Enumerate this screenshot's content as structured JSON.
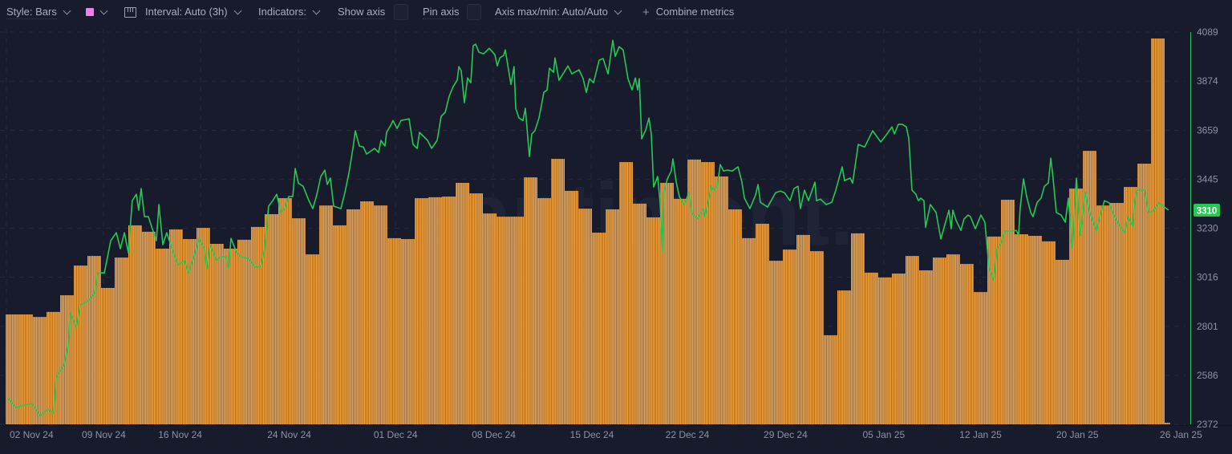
{
  "toolbar": {
    "style_label": "Style: Bars",
    "color_swatch": "#f47ee8",
    "interval_label": "Interval: Auto (3h)",
    "indicators_label": "Indicators:",
    "show_axis_label": "Show axis",
    "pin_axis_label": "Pin axis",
    "axis_maxmin_label": "Axis max/min: Auto/Auto",
    "combine_plus": "+",
    "combine_label": "Combine metrics"
  },
  "watermark": "santiment.",
  "colors": {
    "background": "#181b2b",
    "bars": "#f5a544",
    "line": "#26c953",
    "axis_line": "#26c953",
    "grid": "#2a2e42"
  },
  "chart_data": {
    "type": "bar+line",
    "x_unit": "days since 02 Nov 24",
    "y_axis": {
      "side": "right",
      "ticks": [
        4089,
        3874,
        3659,
        3445,
        3230,
        3016,
        2801,
        2586,
        2372
      ],
      "ylim": [
        2372,
        4089
      ]
    },
    "current_value_label": "3310",
    "x_ticks": [
      {
        "t": 1.9,
        "label": "02 Nov 24"
      },
      {
        "t": 7.2,
        "label": "09 Nov 24"
      },
      {
        "t": 12.8,
        "label": "16 Nov 24"
      },
      {
        "t": 20.8,
        "label": "24 Nov 24"
      },
      {
        "t": 28.6,
        "label": "01 Dec 24"
      },
      {
        "t": 35.8,
        "label": "08 Dec 24"
      },
      {
        "t": 43.0,
        "label": "15 Dec 24"
      },
      {
        "t": 50.0,
        "label": "22 Dec 24"
      },
      {
        "t": 57.2,
        "label": "29 Dec 24"
      },
      {
        "t": 64.4,
        "label": "05 Jan 25"
      },
      {
        "t": 71.5,
        "label": "12 Jan 25"
      },
      {
        "t": 78.6,
        "label": "20 Jan 25"
      },
      {
        "t": 86.2,
        "label": "26 Jan 25"
      }
    ],
    "grid_t": [
      0.06,
      7.18,
      14.3,
      21.47,
      28.6,
      35.76,
      42.94,
      50.0,
      57.24,
      64.41,
      71.47,
      78.65
    ],
    "bars": {
      "name": "Bar metric (daily, scaled to visible axis)",
      "values": [
        2853,
        2853,
        2842,
        2864,
        2937,
        3067,
        3109,
        2969,
        3102,
        3243,
        3215,
        3141,
        3225,
        3183,
        3232,
        3162,
        3141,
        3180,
        3236,
        3292,
        3362,
        3274,
        3116,
        3330,
        3243,
        3313,
        3348,
        3330,
        3187,
        3183,
        3362,
        3366,
        3369,
        3429,
        3383,
        3295,
        3281,
        3281,
        3453,
        3362,
        3534,
        3394,
        3316,
        3211,
        3313,
        3520,
        3338,
        3278,
        3429,
        3359,
        3531,
        3520,
        3457,
        3313,
        3187,
        3250,
        3088,
        3137,
        3201,
        3130,
        2762,
        2958,
        3208,
        3036,
        3015,
        3032,
        3109,
        3046,
        3102,
        3116,
        3074,
        2951,
        3194,
        3355,
        3204,
        3197,
        3173,
        3092,
        3404,
        3569,
        3330,
        3341,
        3411,
        3513,
        4061,
        2379
      ]
    },
    "line": {
      "name": "Price",
      "points": [
        [
          0.18,
          2488
        ],
        [
          0.76,
          2445
        ],
        [
          1.35,
          2456
        ],
        [
          1.94,
          2463
        ],
        [
          2.53,
          2410
        ],
        [
          3.12,
          2438
        ],
        [
          3.53,
          2421
        ],
        [
          3.71,
          2579
        ],
        [
          4.29,
          2631
        ],
        [
          4.59,
          2719
        ],
        [
          4.76,
          2860
        ],
        [
          5.18,
          2797
        ],
        [
          5.47,
          2895
        ],
        [
          6.06,
          2912
        ],
        [
          6.53,
          2947
        ],
        [
          6.76,
          3035
        ],
        [
          7.24,
          3035
        ],
        [
          7.71,
          3176
        ],
        [
          8.12,
          3211
        ],
        [
          8.41,
          3141
        ],
        [
          8.71,
          3211
        ],
        [
          9.0,
          3123
        ],
        [
          9.29,
          3351
        ],
        [
          9.59,
          3379
        ],
        [
          9.76,
          3309
        ],
        [
          9.94,
          3404
        ],
        [
          10.18,
          3281
        ],
        [
          10.47,
          3281
        ],
        [
          10.76,
          3228
        ],
        [
          11.06,
          3176
        ],
        [
          11.24,
          3334
        ],
        [
          11.53,
          3158
        ],
        [
          11.82,
          3211
        ],
        [
          12.24,
          3134
        ],
        [
          12.65,
          3070
        ],
        [
          13.12,
          3088
        ],
        [
          13.41,
          3035
        ],
        [
          13.82,
          3106
        ],
        [
          14.18,
          3186
        ],
        [
          14.59,
          3141
        ],
        [
          14.76,
          3053
        ],
        [
          15.0,
          3158
        ],
        [
          15.47,
          3088
        ],
        [
          15.76,
          3106
        ],
        [
          16.18,
          3106
        ],
        [
          16.35,
          3053
        ],
        [
          16.53,
          3186
        ],
        [
          16.94,
          3123
        ],
        [
          17.24,
          3106
        ],
        [
          17.82,
          3098
        ],
        [
          18.29,
          3060
        ],
        [
          18.71,
          3063
        ],
        [
          19.0,
          3141
        ],
        [
          19.29,
          3327
        ],
        [
          19.59,
          3351
        ],
        [
          19.88,
          3379
        ],
        [
          20.18,
          3299
        ],
        [
          20.47,
          3316
        ],
        [
          20.76,
          3369
        ],
        [
          21.06,
          3369
        ],
        [
          21.24,
          3492
        ],
        [
          21.47,
          3428
        ],
        [
          21.82,
          3414
        ],
        [
          22.24,
          3351
        ],
        [
          22.53,
          3316
        ],
        [
          22.82,
          3376
        ],
        [
          23.12,
          3457
        ],
        [
          23.41,
          3485
        ],
        [
          23.59,
          3422
        ],
        [
          23.82,
          3450
        ],
        [
          24.06,
          3327
        ],
        [
          24.59,
          3316
        ],
        [
          24.88,
          3386
        ],
        [
          25.18,
          3474
        ],
        [
          25.47,
          3580
        ],
        [
          25.65,
          3657
        ],
        [
          25.94,
          3590
        ],
        [
          26.24,
          3586
        ],
        [
          26.47,
          3555
        ],
        [
          27.06,
          3580
        ],
        [
          27.35,
          3562
        ],
        [
          27.53,
          3615
        ],
        [
          27.82,
          3590
        ],
        [
          27.94,
          3650
        ],
        [
          28.24,
          3681
        ],
        [
          28.41,
          3702
        ],
        [
          28.71,
          3667
        ],
        [
          29.0,
          3702
        ],
        [
          29.59,
          3709
        ],
        [
          29.88,
          3597
        ],
        [
          30.18,
          3580
        ],
        [
          30.35,
          3650
        ],
        [
          30.94,
          3615
        ],
        [
          31.24,
          3580
        ],
        [
          31.65,
          3615
        ],
        [
          31.94,
          3720
        ],
        [
          32.24,
          3738
        ],
        [
          32.53,
          3808
        ],
        [
          32.82,
          3850
        ],
        [
          33.12,
          3878
        ],
        [
          33.24,
          3938
        ],
        [
          33.41,
          3920
        ],
        [
          33.65,
          3780
        ],
        [
          33.88,
          3888
        ],
        [
          34.12,
          3867
        ],
        [
          34.29,
          4029
        ],
        [
          34.47,
          4036
        ],
        [
          34.71,
          4001
        ],
        [
          35.06,
          3994
        ],
        [
          35.47,
          4018
        ],
        [
          35.88,
          3990
        ],
        [
          36.06,
          3941
        ],
        [
          36.24,
          3976
        ],
        [
          36.53,
          3987
        ],
        [
          36.65,
          4011
        ],
        [
          36.82,
          3948
        ],
        [
          37.06,
          3860
        ],
        [
          37.29,
          3938
        ],
        [
          37.41,
          3755
        ],
        [
          37.65,
          3713
        ],
        [
          37.94,
          3702
        ],
        [
          38.12,
          3755
        ],
        [
          38.41,
          3544
        ],
        [
          38.59,
          3643
        ],
        [
          38.82,
          3657
        ],
        [
          39.12,
          3713
        ],
        [
          39.29,
          3766
        ],
        [
          39.47,
          3825
        ],
        [
          39.71,
          3836
        ],
        [
          39.88,
          3931
        ],
        [
          40.18,
          3913
        ],
        [
          40.29,
          3976
        ],
        [
          40.59,
          3878
        ],
        [
          40.88,
          3906
        ],
        [
          41.24,
          3941
        ],
        [
          41.53,
          3906
        ],
        [
          42.06,
          3924
        ],
        [
          42.35,
          3885
        ],
        [
          42.59,
          3825
        ],
        [
          42.82,
          3885
        ],
        [
          43.12,
          3867
        ],
        [
          43.53,
          3966
        ],
        [
          43.82,
          3973
        ],
        [
          44.18,
          3906
        ],
        [
          44.53,
          4053
        ],
        [
          44.71,
          3983
        ],
        [
          45.0,
          4025
        ],
        [
          45.29,
          4011
        ],
        [
          45.65,
          3885
        ],
        [
          45.94,
          3836
        ],
        [
          46.18,
          3888
        ],
        [
          46.35,
          3836
        ],
        [
          46.47,
          3885
        ],
        [
          46.65,
          3622
        ],
        [
          46.94,
          3660
        ],
        [
          47.18,
          3713
        ],
        [
          47.35,
          3643
        ],
        [
          47.53,
          3411
        ],
        [
          47.82,
          3457
        ],
        [
          48.0,
          3341
        ],
        [
          48.18,
          3123
        ],
        [
          48.29,
          3386
        ],
        [
          48.53,
          3446
        ],
        [
          48.82,
          3481
        ],
        [
          48.94,
          3534
        ],
        [
          49.18,
          3432
        ],
        [
          49.41,
          3369
        ],
        [
          49.76,
          3334
        ],
        [
          50.12,
          3386
        ],
        [
          50.35,
          3292
        ],
        [
          50.76,
          3274
        ],
        [
          51.18,
          3316
        ],
        [
          51.29,
          3281
        ],
        [
          51.76,
          3414
        ],
        [
          51.94,
          3397
        ],
        [
          52.18,
          3414
        ],
        [
          52.41,
          3509
        ],
        [
          52.65,
          3481
        ],
        [
          52.94,
          3485
        ],
        [
          53.29,
          3481
        ],
        [
          53.71,
          3499
        ],
        [
          54.0,
          3432
        ],
        [
          54.18,
          3362
        ],
        [
          54.59,
          3316
        ],
        [
          55.0,
          3376
        ],
        [
          55.18,
          3422
        ],
        [
          55.35,
          3344
        ],
        [
          55.88,
          3323
        ],
        [
          56.47,
          3386
        ],
        [
          56.82,
          3393
        ],
        [
          57.12,
          3386
        ],
        [
          57.53,
          3351
        ],
        [
          57.82,
          3404
        ],
        [
          58.12,
          3414
        ],
        [
          58.29,
          3316
        ],
        [
          58.59,
          3397
        ],
        [
          58.88,
          3351
        ],
        [
          59.35,
          3432
        ],
        [
          59.47,
          3351
        ],
        [
          59.76,
          3358
        ],
        [
          60.18,
          3334
        ],
        [
          60.59,
          3344
        ],
        [
          60.88,
          3397
        ],
        [
          61.35,
          3499
        ],
        [
          61.53,
          3439
        ],
        [
          61.94,
          3450
        ],
        [
          62.12,
          3428
        ],
        [
          62.53,
          3597
        ],
        [
          63.0,
          3586
        ],
        [
          63.59,
          3657
        ],
        [
          64.18,
          3608
        ],
        [
          64.59,
          3639
        ],
        [
          65.0,
          3674
        ],
        [
          65.18,
          3643
        ],
        [
          65.47,
          3685
        ],
        [
          65.76,
          3685
        ],
        [
          66.06,
          3674
        ],
        [
          66.24,
          3622
        ],
        [
          66.47,
          3397
        ],
        [
          66.76,
          3379
        ],
        [
          66.94,
          3351
        ],
        [
          67.12,
          3362
        ],
        [
          67.35,
          3351
        ],
        [
          67.47,
          3235
        ],
        [
          67.82,
          3334
        ],
        [
          68.24,
          3299
        ],
        [
          68.59,
          3183
        ],
        [
          68.88,
          3246
        ],
        [
          69.18,
          3309
        ],
        [
          69.35,
          3228
        ],
        [
          69.47,
          3309
        ],
        [
          69.71,
          3264
        ],
        [
          70.06,
          3221
        ],
        [
          70.29,
          3271
        ],
        [
          70.59,
          3288
        ],
        [
          70.76,
          3281
        ],
        [
          71.12,
          3228
        ],
        [
          71.53,
          3288
        ],
        [
          71.82,
          3257
        ],
        [
          72.12,
          3060
        ],
        [
          72.47,
          3000
        ],
        [
          72.71,
          3141
        ],
        [
          73.0,
          3165
        ],
        [
          73.29,
          3218
        ],
        [
          73.71,
          3218
        ],
        [
          74.12,
          3221
        ],
        [
          74.29,
          3200
        ],
        [
          74.41,
          3323
        ],
        [
          74.65,
          3446
        ],
        [
          74.88,
          3369
        ],
        [
          75.18,
          3299
        ],
        [
          75.35,
          3281
        ],
        [
          75.65,
          3344
        ],
        [
          75.94,
          3362
        ],
        [
          76.18,
          3414
        ],
        [
          76.47,
          3428
        ],
        [
          76.65,
          3537
        ],
        [
          76.82,
          3450
        ],
        [
          77.06,
          3299
        ],
        [
          77.41,
          3288
        ],
        [
          77.71,
          3257
        ],
        [
          77.94,
          3362
        ],
        [
          78.24,
          3141
        ],
        [
          78.53,
          3450
        ],
        [
          78.82,
          3200
        ],
        [
          79.18,
          3386
        ],
        [
          79.47,
          3306
        ],
        [
          80.0,
          3218
        ],
        [
          80.29,
          3292
        ],
        [
          80.59,
          3351
        ],
        [
          80.94,
          3341
        ],
        [
          81.24,
          3292
        ],
        [
          81.65,
          3246
        ],
        [
          82.06,
          3211
        ],
        [
          82.35,
          3281
        ],
        [
          82.65,
          3239
        ],
        [
          82.82,
          3351
        ],
        [
          83.0,
          3397
        ],
        [
          83.53,
          3397
        ],
        [
          83.82,
          3299
        ],
        [
          84.18,
          3306
        ],
        [
          84.59,
          3341
        ],
        [
          84.88,
          3327
        ],
        [
          85.29,
          3310
        ]
      ]
    }
  }
}
